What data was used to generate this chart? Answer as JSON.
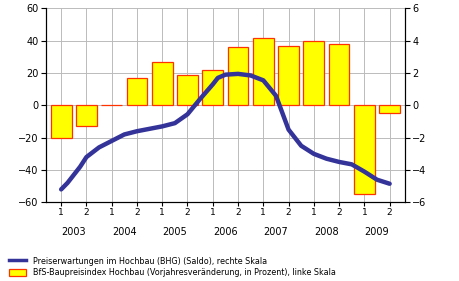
{
  "bar_labels": [
    "2003/1",
    "2003/2",
    "2004/1",
    "2004/2",
    "2005/1",
    "2005/2",
    "2006/1",
    "2006/2",
    "2007/1",
    "2007/2",
    "2008/1",
    "2008/2",
    "2009/1",
    "2009/2"
  ],
  "bar_x": [
    1,
    2,
    3,
    4,
    5,
    6,
    7,
    8,
    9,
    10,
    11,
    12,
    13,
    14
  ],
  "bar_values": [
    -20,
    -13,
    0,
    17,
    27,
    19,
    22,
    36,
    42,
    37,
    40,
    38,
    -55,
    -5
  ],
  "line_x_fine": [
    1.0,
    1.25,
    1.5,
    1.75,
    2.0,
    2.5,
    3.0,
    3.5,
    4.0,
    4.5,
    5.0,
    5.5,
    6.0,
    6.5,
    7.0,
    7.2,
    7.5,
    8.0,
    8.5,
    9.0,
    9.5,
    10.0,
    10.5,
    11.0,
    11.5,
    12.0,
    12.5,
    13.0,
    13.5,
    14.0
  ],
  "line_y_right": [
    -5.2,
    -4.8,
    -4.3,
    -3.8,
    -3.2,
    -2.6,
    -2.2,
    -1.8,
    -1.6,
    -1.45,
    -1.3,
    -1.1,
    -0.55,
    0.4,
    1.3,
    1.7,
    1.9,
    1.95,
    1.85,
    1.55,
    0.6,
    -1.5,
    -2.5,
    -3.0,
    -3.3,
    -3.5,
    -3.65,
    -4.1,
    -4.6,
    -4.85
  ],
  "bar_color": "#FFFF00",
  "bar_edgecolor": "#FF3300",
  "line_color": "#333399",
  "line_width": 3.2,
  "left_ylim": [
    -60,
    60
  ],
  "right_ylim": [
    -6,
    6
  ],
  "left_yticks": [
    -60,
    -40,
    -20,
    0,
    20,
    40,
    60
  ],
  "right_yticks": [
    -6,
    -4,
    -2,
    0,
    2,
    4,
    6
  ],
  "grid_color": "#BBBBBB",
  "background_color": "#FFFFFF",
  "legend_line_label": "Preiserwartungen im Hochbau (BHG) (Saldo), rechte Skala",
  "legend_bar_label": "BfS-Baupreisindex Hochbau (Vorjahresveränderung, in Prozent), linke Skala",
  "year_positions": [
    1.5,
    3.5,
    5.5,
    7.5,
    9.5,
    11.5,
    13.5
  ],
  "year_labels": [
    "2003",
    "2004",
    "2005",
    "2006",
    "2007",
    "2008",
    "2009"
  ]
}
